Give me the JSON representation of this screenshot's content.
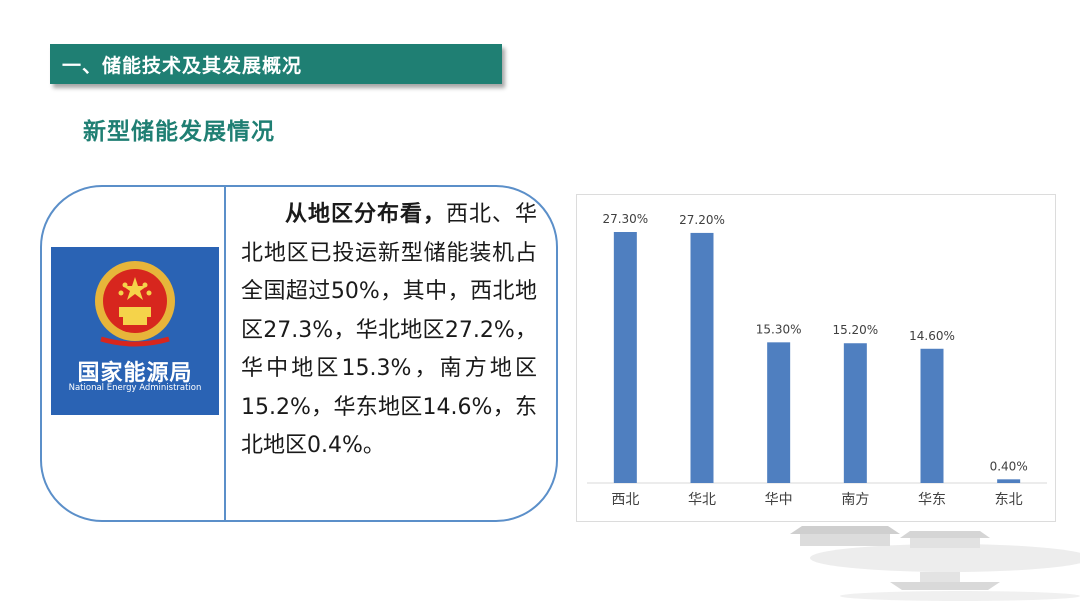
{
  "header": {
    "section_title": "一、储能技术及其发展概况"
  },
  "subtitle": "新型储能发展情况",
  "logo": {
    "name_cn": "国家能源局",
    "name_en": "National Energy Administration"
  },
  "body": {
    "lead": "从地区分布看，",
    "text": "西北、华北地区已投运新型储能装机占全国超过50%，其中，西北地区27.3%，华北地区27.2%，华中地区15.3%，南方地区15.2%，华东地区14.6%，东北地区0.4%。"
  },
  "colors": {
    "header_bg": "#1f7f73",
    "accent": "#1f7f73",
    "card_border": "#5b8fc9",
    "bar": "#4f7fc0",
    "logo_bg": "#2a63b4"
  },
  "chart_data": {
    "type": "bar",
    "categories": [
      "西北",
      "华北",
      "华中",
      "南方",
      "华东",
      "东北"
    ],
    "values": [
      27.3,
      27.2,
      15.3,
      15.2,
      14.6,
      0.4
    ],
    "labels": [
      "27.30%",
      "27.20%",
      "15.30%",
      "15.20%",
      "14.60%",
      "0.40%"
    ],
    "ylim": [
      0,
      27.3
    ],
    "grid": false,
    "legend": "none"
  }
}
